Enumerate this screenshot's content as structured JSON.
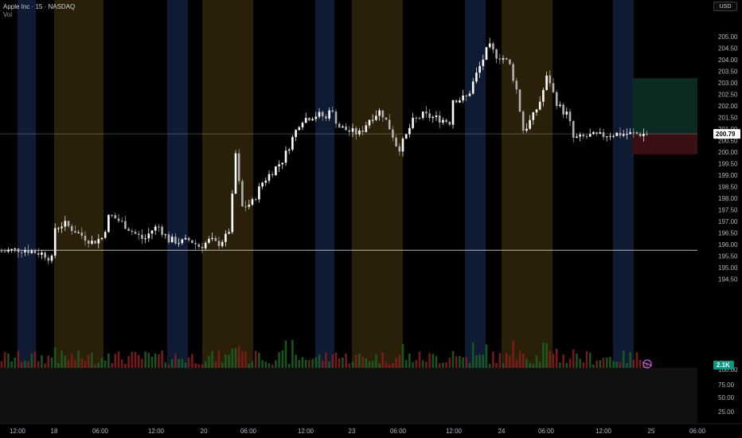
{
  "header": {
    "symbol_title": "Apple Inc · 15 · NASDAQ",
    "volume_label": "Vol",
    "currency": "USD"
  },
  "price_axis": {
    "ticks": [
      "205.00",
      "204.50",
      "204.00",
      "203.50",
      "203.00",
      "202.50",
      "202.00",
      "201.50",
      "201.00",
      "200.50",
      "200.00",
      "199.50",
      "199.00",
      "198.50",
      "198.00",
      "197.50",
      "197.00",
      "196.50",
      "196.00",
      "195.50",
      "195.00",
      "194.50"
    ],
    "current_price": "200.79"
  },
  "volume_axis": {
    "ticks": [
      "100.00",
      "75.00",
      "50.00",
      "25.00"
    ],
    "current_volume": "2.1K"
  },
  "time_axis": {
    "ticks": [
      "12:00",
      "18",
      "06:00",
      "12:00",
      "20",
      "06:00",
      "12:00",
      "23",
      "06:00",
      "12:00",
      "24",
      "06:00",
      "12:00",
      "25",
      "06:00"
    ]
  },
  "colors": {
    "up": "#ffffff",
    "down": "#b0b0b0",
    "volume_up": "#1b5e20",
    "volume_down": "#7f1d1d",
    "asian_session": "#0f1a33",
    "london_session": "#2a1f08",
    "horizontal_line": "#c8c8c8",
    "current_price_tag": "#ffffff",
    "volume_tag": "#089981",
    "target_zone": "#0a2a22",
    "stop_zone": "#3a0f14"
  },
  "chart_data": {
    "type": "candlestick",
    "title": "Apple Inc · 15 · NASDAQ",
    "y_range": [
      194.0,
      205.3
    ],
    "horizontal_lines": [
      195.75,
      200.79
    ],
    "last_price": 200.79,
    "position_tool": {
      "entry": 200.8,
      "target": 203.2,
      "stop": 199.9
    },
    "price_path": [
      [
        0,
        195.7
      ],
      [
        0.03,
        195.8
      ],
      [
        0.06,
        195.6
      ],
      [
        0.075,
        195.3
      ],
      [
        0.075,
        196.7
      ],
      [
        0.09,
        196.9
      ],
      [
        0.11,
        196.5
      ],
      [
        0.13,
        196.1
      ],
      [
        0.145,
        196.3
      ],
      [
        0.155,
        197.3
      ],
      [
        0.175,
        196.9
      ],
      [
        0.19,
        196.5
      ],
      [
        0.205,
        196.2
      ],
      [
        0.215,
        196.6
      ],
      [
        0.225,
        196.8
      ],
      [
        0.24,
        196.2
      ],
      [
        0.26,
        196.1
      ],
      [
        0.27,
        196.2
      ],
      [
        0.285,
        195.9
      ],
      [
        0.3,
        196.2
      ],
      [
        0.31,
        196.0
      ],
      [
        0.325,
        196.4
      ],
      [
        0.33,
        197.0
      ],
      [
        0.335,
        200.3
      ],
      [
        0.345,
        197.6
      ],
      [
        0.36,
        197.8
      ],
      [
        0.375,
        198.7
      ],
      [
        0.39,
        199.2
      ],
      [
        0.405,
        199.7
      ],
      [
        0.415,
        200.4
      ],
      [
        0.43,
        201.4
      ],
      [
        0.45,
        201.6
      ],
      [
        0.46,
        201.6
      ],
      [
        0.47,
        201.3
      ],
      [
        0.47,
        202.0
      ],
      [
        0.485,
        201.1
      ],
      [
        0.5,
        200.9
      ],
      [
        0.515,
        200.8
      ],
      [
        0.53,
        201.5
      ],
      [
        0.545,
        201.8
      ],
      [
        0.56,
        200.9
      ],
      [
        0.57,
        200.1
      ],
      [
        0.58,
        200.6
      ],
      [
        0.59,
        201.3
      ],
      [
        0.605,
        201.6
      ],
      [
        0.62,
        201.5
      ],
      [
        0.635,
        201.4
      ],
      [
        0.645,
        201.3
      ],
      [
        0.645,
        202.3
      ],
      [
        0.66,
        202.3
      ],
      [
        0.67,
        202.4
      ],
      [
        0.68,
        203.2
      ],
      [
        0.69,
        203.9
      ],
      [
        0.7,
        204.6
      ],
      [
        0.71,
        204.2
      ],
      [
        0.72,
        204.1
      ],
      [
        0.73,
        203.8
      ],
      [
        0.74,
        202.7
      ],
      [
        0.75,
        200.9
      ],
      [
        0.765,
        201.6
      ],
      [
        0.775,
        202.3
      ],
      [
        0.785,
        203.4
      ],
      [
        0.795,
        202.3
      ],
      [
        0.805,
        201.8
      ],
      [
        0.815,
        201.6
      ],
      [
        0.82,
        200.6
      ],
      [
        0.83,
        200.6
      ],
      [
        0.845,
        200.7
      ],
      [
        0.86,
        200.7
      ],
      [
        0.875,
        200.79
      ]
    ]
  }
}
